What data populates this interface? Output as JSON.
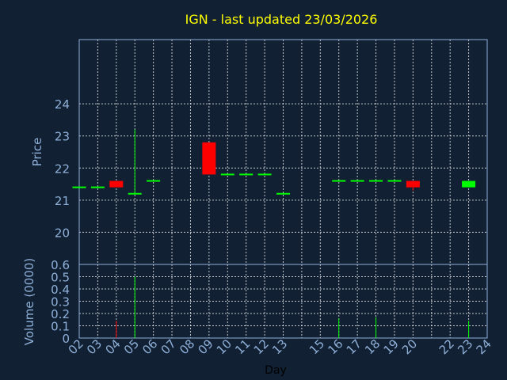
{
  "chart_data": [
    {
      "type": "candlestick",
      "title": "IGN - last updated 23/03/2026",
      "ylabel": "Price",
      "ylim": [
        19,
        26
      ],
      "yticks": [
        20,
        21,
        22,
        23,
        24
      ],
      "grid": true,
      "colors": {
        "up": "#00ff00",
        "down": "#ff0000",
        "title": "#ffff00",
        "axis": "#8fb0d8",
        "background": "#112033"
      },
      "candles": [
        {
          "day": "02",
          "open": 21.4,
          "high": 21.4,
          "low": 21.4,
          "close": 21.4
        },
        {
          "day": "03",
          "open": 21.4,
          "high": 21.4,
          "low": 21.4,
          "close": 21.4
        },
        {
          "day": "04",
          "open": 21.6,
          "high": 21.6,
          "low": 21.4,
          "close": 21.4
        },
        {
          "day": "05",
          "open": 21.2,
          "high": 23.2,
          "low": 21.2,
          "close": 21.2
        },
        {
          "day": "06",
          "open": 21.6,
          "high": 21.6,
          "low": 21.6,
          "close": 21.6
        },
        {
          "day": "09",
          "open": 22.8,
          "high": 22.8,
          "low": 21.8,
          "close": 21.8
        },
        {
          "day": "10",
          "open": 21.8,
          "high": 21.8,
          "low": 21.8,
          "close": 21.8
        },
        {
          "day": "11",
          "open": 21.8,
          "high": 21.8,
          "low": 21.8,
          "close": 21.8
        },
        {
          "day": "12",
          "open": 21.8,
          "high": 21.8,
          "low": 21.8,
          "close": 21.8
        },
        {
          "day": "13",
          "open": 21.2,
          "high": 21.2,
          "low": 21.2,
          "close": 21.2
        },
        {
          "day": "16",
          "open": 21.6,
          "high": 21.6,
          "low": 21.6,
          "close": 21.6
        },
        {
          "day": "17",
          "open": 21.6,
          "high": 21.6,
          "low": 21.6,
          "close": 21.6
        },
        {
          "day": "18",
          "open": 21.6,
          "high": 21.6,
          "low": 21.6,
          "close": 21.6
        },
        {
          "day": "19",
          "open": 21.6,
          "high": 21.6,
          "low": 21.6,
          "close": 21.6
        },
        {
          "day": "20",
          "open": 21.6,
          "high": 21.6,
          "low": 21.3,
          "close": 21.4
        },
        {
          "day": "23",
          "open": 21.4,
          "high": 21.6,
          "low": 21.4,
          "close": 21.6
        }
      ]
    },
    {
      "type": "bar",
      "ylabel": "Volume (0000)",
      "xlabel": "Day",
      "ylim": [
        0,
        0.6
      ],
      "yticks": [
        "0",
        "0.1",
        "0.2",
        "0.3",
        "0.4",
        "0.5",
        "0.6"
      ],
      "categories": [
        "02",
        "03",
        "04",
        "05",
        "06",
        "07",
        "08",
        "09",
        "10",
        "11",
        "12",
        "13",
        "15",
        "16",
        "17",
        "18",
        "19",
        "20",
        "22",
        "23",
        "24"
      ],
      "volumes": [
        {
          "day": "04",
          "value": 0.14,
          "color": "#ff0000"
        },
        {
          "day": "05",
          "value": 0.5,
          "color": "#00ff00"
        },
        {
          "day": "16",
          "value": 0.16,
          "color": "#00ff00"
        },
        {
          "day": "18",
          "value": 0.17,
          "color": "#00ff00"
        },
        {
          "day": "23",
          "value": 0.14,
          "color": "#00ff00"
        }
      ]
    }
  ]
}
